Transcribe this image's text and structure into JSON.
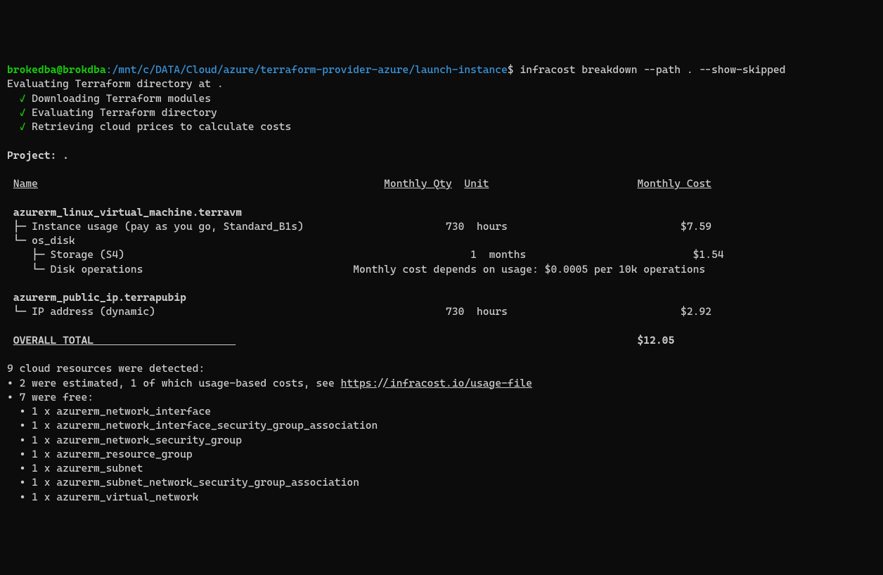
{
  "prompt": {
    "user_host": "brokedba@brokdba",
    "path": ":/mnt/c/DATA/Cloud/azure/terraform-provider-azure/launch-instance",
    "symbol": "$",
    "command": "infracost breakdown --path . --show-skipped"
  },
  "steps": {
    "eval_header": "Evaluating Terraform directory at .",
    "s1": "Downloading Terraform modules",
    "s2": "Evaluating Terraform directory",
    "s3": "Retrieving cloud prices to calculate costs",
    "check": "✓"
  },
  "project_label": "Project: .",
  "headers": {
    "name": "Name",
    "qty": "Monthly Qty",
    "unit": "Unit",
    "cost": "Monthly Cost"
  },
  "resources": {
    "vm_title": "azurerm_linux_virtual_machine.terravm",
    "vm_instance_label": "├─ Instance usage (pay as you go, Standard_B1s)",
    "vm_instance_qty": "730",
    "vm_instance_unit": "hours",
    "vm_instance_cost": "$7.59",
    "vm_osdisk_label": "└─ os_disk",
    "vm_storage_label": "   ├─ Storage (S4)",
    "vm_storage_qty": "1",
    "vm_storage_unit": "months",
    "vm_storage_cost": "$1.54",
    "vm_diskops_label": "   └─ Disk operations",
    "vm_diskops_note": "Monthly cost depends on usage: $0.0005 per 10k operations",
    "ip_title": "azurerm_public_ip.terrapubip",
    "ip_addr_label": "└─ IP address (dynamic)",
    "ip_addr_qty": "730",
    "ip_addr_unit": "hours",
    "ip_addr_cost": "$2.92",
    "total_label": "OVERALL TOTAL",
    "total_cost": "$12.05"
  },
  "summary": {
    "detected": "9 cloud resources were detected:",
    "estimated_prefix": "∙ 2 were estimated, 1 of which usage-based costs, see ",
    "estimated_link": "https://infracost.io/usage-file",
    "free_header": "∙ 7 were free:",
    "f1": "  ∙ 1 x azurerm_network_interface",
    "f2": "  ∙ 1 x azurerm_network_interface_security_group_association",
    "f3": "  ∙ 1 x azurerm_network_security_group",
    "f4": "  ∙ 1 x azurerm_resource_group",
    "f5": "  ∙ 1 x azurerm_subnet",
    "f6": "  ∙ 1 x azurerm_subnet_network_security_group_association",
    "f7": "  ∙ 1 x azurerm_virtual_network"
  }
}
